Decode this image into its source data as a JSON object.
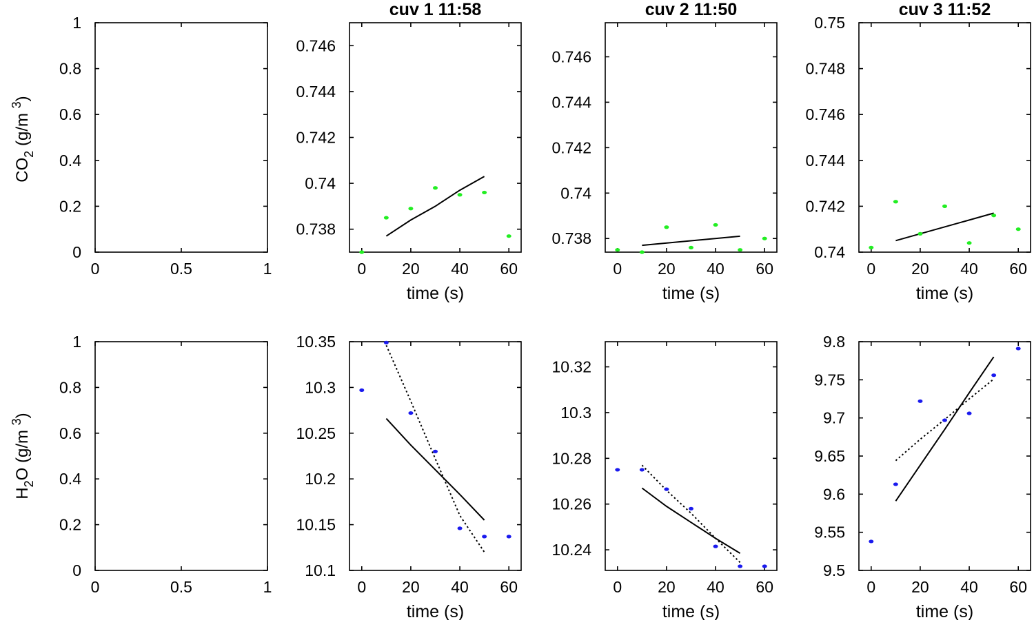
{
  "row_labels": {
    "co2": {
      "main": "CO",
      "sub": "2",
      "unit": " (g/m ",
      "sup": "3",
      "close": ")"
    },
    "h2o": {
      "main": "H",
      "sub": "2",
      "rest": "O (g/m ",
      "sup": "3",
      "close": ")"
    }
  },
  "styles": {
    "co2_point_color": "#22ee22",
    "h2o_point_color": "#1a1aee",
    "fit_color": "#000000"
  },
  "chart_data": [
    {
      "id": "co2-empty",
      "type": "scatter",
      "title": "",
      "xlabel": "",
      "ylabel": "CO2 (g/m3)",
      "xlim": [
        0,
        1
      ],
      "ylim": [
        0,
        1
      ],
      "xticks": [
        "0",
        "0.5",
        "1"
      ],
      "yticks": [
        "0",
        "0.2",
        "0.4",
        "0.6",
        "0.8",
        "1"
      ],
      "points": [],
      "fits": []
    },
    {
      "id": "co2-cuv1",
      "type": "scatter",
      "title": "cuv 1 11:58",
      "xlabel": "time (s)",
      "ylabel": "",
      "xlim": [
        -5,
        65
      ],
      "ylim": [
        0.737,
        0.747
      ],
      "xticks": [
        "0",
        "20",
        "40",
        "60"
      ],
      "yticks": [
        "0.738",
        "0.74",
        "0.742",
        "0.744",
        "0.746"
      ],
      "points": [
        [
          0,
          0.737
        ],
        [
          10,
          0.7385
        ],
        [
          20,
          0.7389
        ],
        [
          30,
          0.7398
        ],
        [
          40,
          0.7395
        ],
        [
          50,
          0.7396
        ],
        [
          60,
          0.7377
        ]
      ],
      "fits": [
        {
          "style": "solid",
          "x": [
            10,
            20,
            30,
            40,
            50
          ],
          "y": [
            0.7377,
            0.7384,
            0.739,
            0.7397,
            0.7403
          ]
        }
      ]
    },
    {
      "id": "co2-cuv2",
      "type": "scatter",
      "title": "cuv 2 11:50",
      "xlabel": "time (s)",
      "ylabel": "",
      "xlim": [
        -5,
        65
      ],
      "ylim": [
        0.7374,
        0.7475
      ],
      "xticks": [
        "0",
        "20",
        "40",
        "60"
      ],
      "yticks": [
        "0.738",
        "0.74",
        "0.742",
        "0.744",
        "0.746"
      ],
      "points": [
        [
          0,
          0.7375
        ],
        [
          10,
          0.7374
        ],
        [
          20,
          0.7385
        ],
        [
          30,
          0.7376
        ],
        [
          40,
          0.7386
        ],
        [
          50,
          0.7375
        ],
        [
          60,
          0.738
        ]
      ],
      "fits": [
        {
          "style": "solid",
          "x": [
            10,
            50
          ],
          "y": [
            0.7377,
            0.7381
          ]
        }
      ]
    },
    {
      "id": "co2-cuv3",
      "type": "scatter",
      "title": "cuv 3 11:52",
      "xlabel": "time (s)",
      "ylabel": "",
      "xlim": [
        -5,
        65
      ],
      "ylim": [
        0.74,
        0.75
      ],
      "xticks": [
        "0",
        "20",
        "40",
        "60"
      ],
      "yticks": [
        "0.74",
        "0.742",
        "0.744",
        "0.746",
        "0.748",
        "0.75"
      ],
      "points": [
        [
          0,
          0.7402
        ],
        [
          10,
          0.7422
        ],
        [
          20,
          0.7408
        ],
        [
          30,
          0.742
        ],
        [
          40,
          0.7404
        ],
        [
          50,
          0.7416
        ],
        [
          60,
          0.741
        ]
      ],
      "fits": [
        {
          "style": "solid",
          "x": [
            10,
            50
          ],
          "y": [
            0.7405,
            0.7417
          ]
        }
      ]
    },
    {
      "id": "h2o-empty",
      "type": "scatter",
      "title": "",
      "xlabel": "",
      "ylabel": "H2O (g/m3)",
      "xlim": [
        0,
        1
      ],
      "ylim": [
        0,
        1
      ],
      "xticks": [
        "0",
        "0.5",
        "1"
      ],
      "yticks": [
        "0",
        "0.2",
        "0.4",
        "0.6",
        "0.8",
        "1"
      ],
      "points": [],
      "fits": []
    },
    {
      "id": "h2o-cuv1",
      "type": "scatter",
      "title": "",
      "xlabel": "time (s)",
      "ylabel": "",
      "xlim": [
        -5,
        65
      ],
      "ylim": [
        10.1,
        10.35
      ],
      "xticks": [
        "0",
        "20",
        "40",
        "60"
      ],
      "yticks": [
        "10.1",
        "10.15",
        "10.2",
        "10.25",
        "10.3",
        "10.35"
      ],
      "points": [
        [
          0,
          10.297
        ],
        [
          10,
          10.349
        ],
        [
          20,
          10.272
        ],
        [
          30,
          10.23
        ],
        [
          40,
          10.146
        ],
        [
          50,
          10.137
        ],
        [
          60,
          10.137
        ]
      ],
      "fits": [
        {
          "style": "solid",
          "x": [
            10,
            20,
            30,
            40,
            50
          ],
          "y": [
            10.266,
            10.237,
            10.21,
            10.183,
            10.155
          ]
        },
        {
          "style": "dotted",
          "x": [
            10,
            20,
            30,
            40,
            50
          ],
          "y": [
            10.346,
            10.285,
            10.222,
            10.16,
            10.12
          ]
        }
      ]
    },
    {
      "id": "h2o-cuv2",
      "type": "scatter",
      "title": "",
      "xlabel": "time (s)",
      "ylabel": "",
      "xlim": [
        -5,
        65
      ],
      "ylim": [
        10.231,
        10.331
      ],
      "xticks": [
        "0",
        "20",
        "40",
        "60"
      ],
      "yticks": [
        "10.24",
        "10.26",
        "10.28",
        "10.3",
        "10.32"
      ],
      "points": [
        [
          0,
          10.275
        ],
        [
          10,
          10.275
        ],
        [
          20,
          10.2665
        ],
        [
          30,
          10.258
        ],
        [
          40,
          10.2415
        ],
        [
          50,
          10.2328
        ],
        [
          60,
          10.2328
        ]
      ],
      "fits": [
        {
          "style": "solid",
          "x": [
            10,
            20,
            30,
            40,
            50
          ],
          "y": [
            10.267,
            10.259,
            10.252,
            10.245,
            10.2385
          ]
        },
        {
          "style": "dotted",
          "x": [
            10,
            20,
            30,
            40,
            50
          ],
          "y": [
            10.277,
            10.266,
            10.256,
            10.245,
            10.2345
          ]
        }
      ]
    },
    {
      "id": "h2o-cuv3",
      "type": "scatter",
      "title": "",
      "xlabel": "time (s)",
      "ylabel": "",
      "xlim": [
        -5,
        65
      ],
      "ylim": [
        9.5,
        9.8
      ],
      "xticks": [
        "0",
        "20",
        "40",
        "60"
      ],
      "yticks": [
        "9.5",
        "9.55",
        "9.6",
        "9.65",
        "9.7",
        "9.75",
        "9.8"
      ],
      "points": [
        [
          0,
          9.538
        ],
        [
          10,
          9.613
        ],
        [
          20,
          9.722
        ],
        [
          30,
          9.697
        ],
        [
          40,
          9.706
        ],
        [
          50,
          9.756
        ],
        [
          60,
          9.791
        ]
      ],
      "fits": [
        {
          "style": "solid",
          "x": [
            10,
            20,
            30,
            40,
            50
          ],
          "y": [
            9.591,
            9.638,
            9.685,
            9.733,
            9.78
          ]
        },
        {
          "style": "dotted",
          "x": [
            10,
            20,
            30,
            40,
            50
          ],
          "y": [
            9.644,
            9.672,
            9.698,
            9.725,
            9.751
          ]
        }
      ]
    }
  ]
}
